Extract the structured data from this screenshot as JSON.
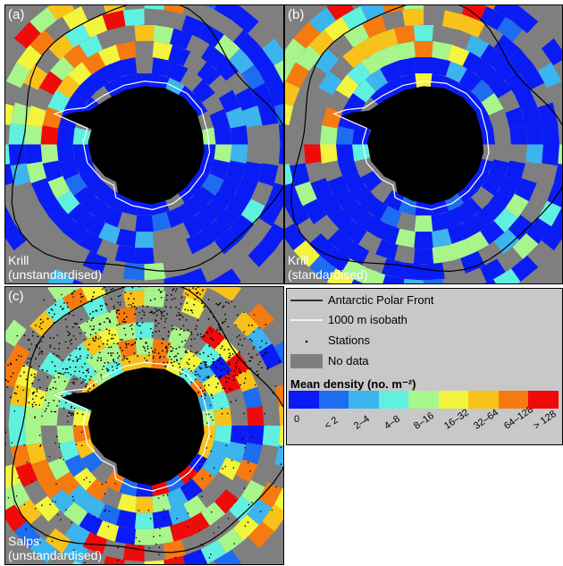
{
  "panels": [
    {
      "id": "a",
      "label": "(a)",
      "title_line1": "Krill",
      "title_line2": "(unstandardised)",
      "map": "krill_unstd"
    },
    {
      "id": "b",
      "label": "(b)",
      "title_line1": "Krill",
      "title_line2": "(standardised)",
      "map": "krill_std"
    },
    {
      "id": "c",
      "label": "(c)",
      "title_line1": "Salps",
      "title_line2": "(unstandardised)",
      "map": "salps"
    }
  ],
  "legend": {
    "items": [
      {
        "symbol": "black-line",
        "label": "Antarctic Polar Front"
      },
      {
        "symbol": "white-line",
        "label": "1000 m isobath"
      },
      {
        "symbol": "dot",
        "label": "Stations"
      },
      {
        "symbol": "grey-box",
        "label": "No data"
      }
    ],
    "scale_title": "Mean density (no. m⁻²)",
    "classes": [
      "0",
      "< 2",
      "2–4",
      "4–8",
      "8–16",
      "16–32",
      "32–64",
      "64–128",
      "> 128"
    ],
    "class_colors": [
      "#0a1cf5",
      "#1e6cf0",
      "#3cb4ee",
      "#5ff0e0",
      "#a8f58c",
      "#f2f53c",
      "#f8c21a",
      "#f57a10",
      "#f00a0a"
    ],
    "no_data_color": "#7f7f7f",
    "land_color": "#000000"
  }
}
